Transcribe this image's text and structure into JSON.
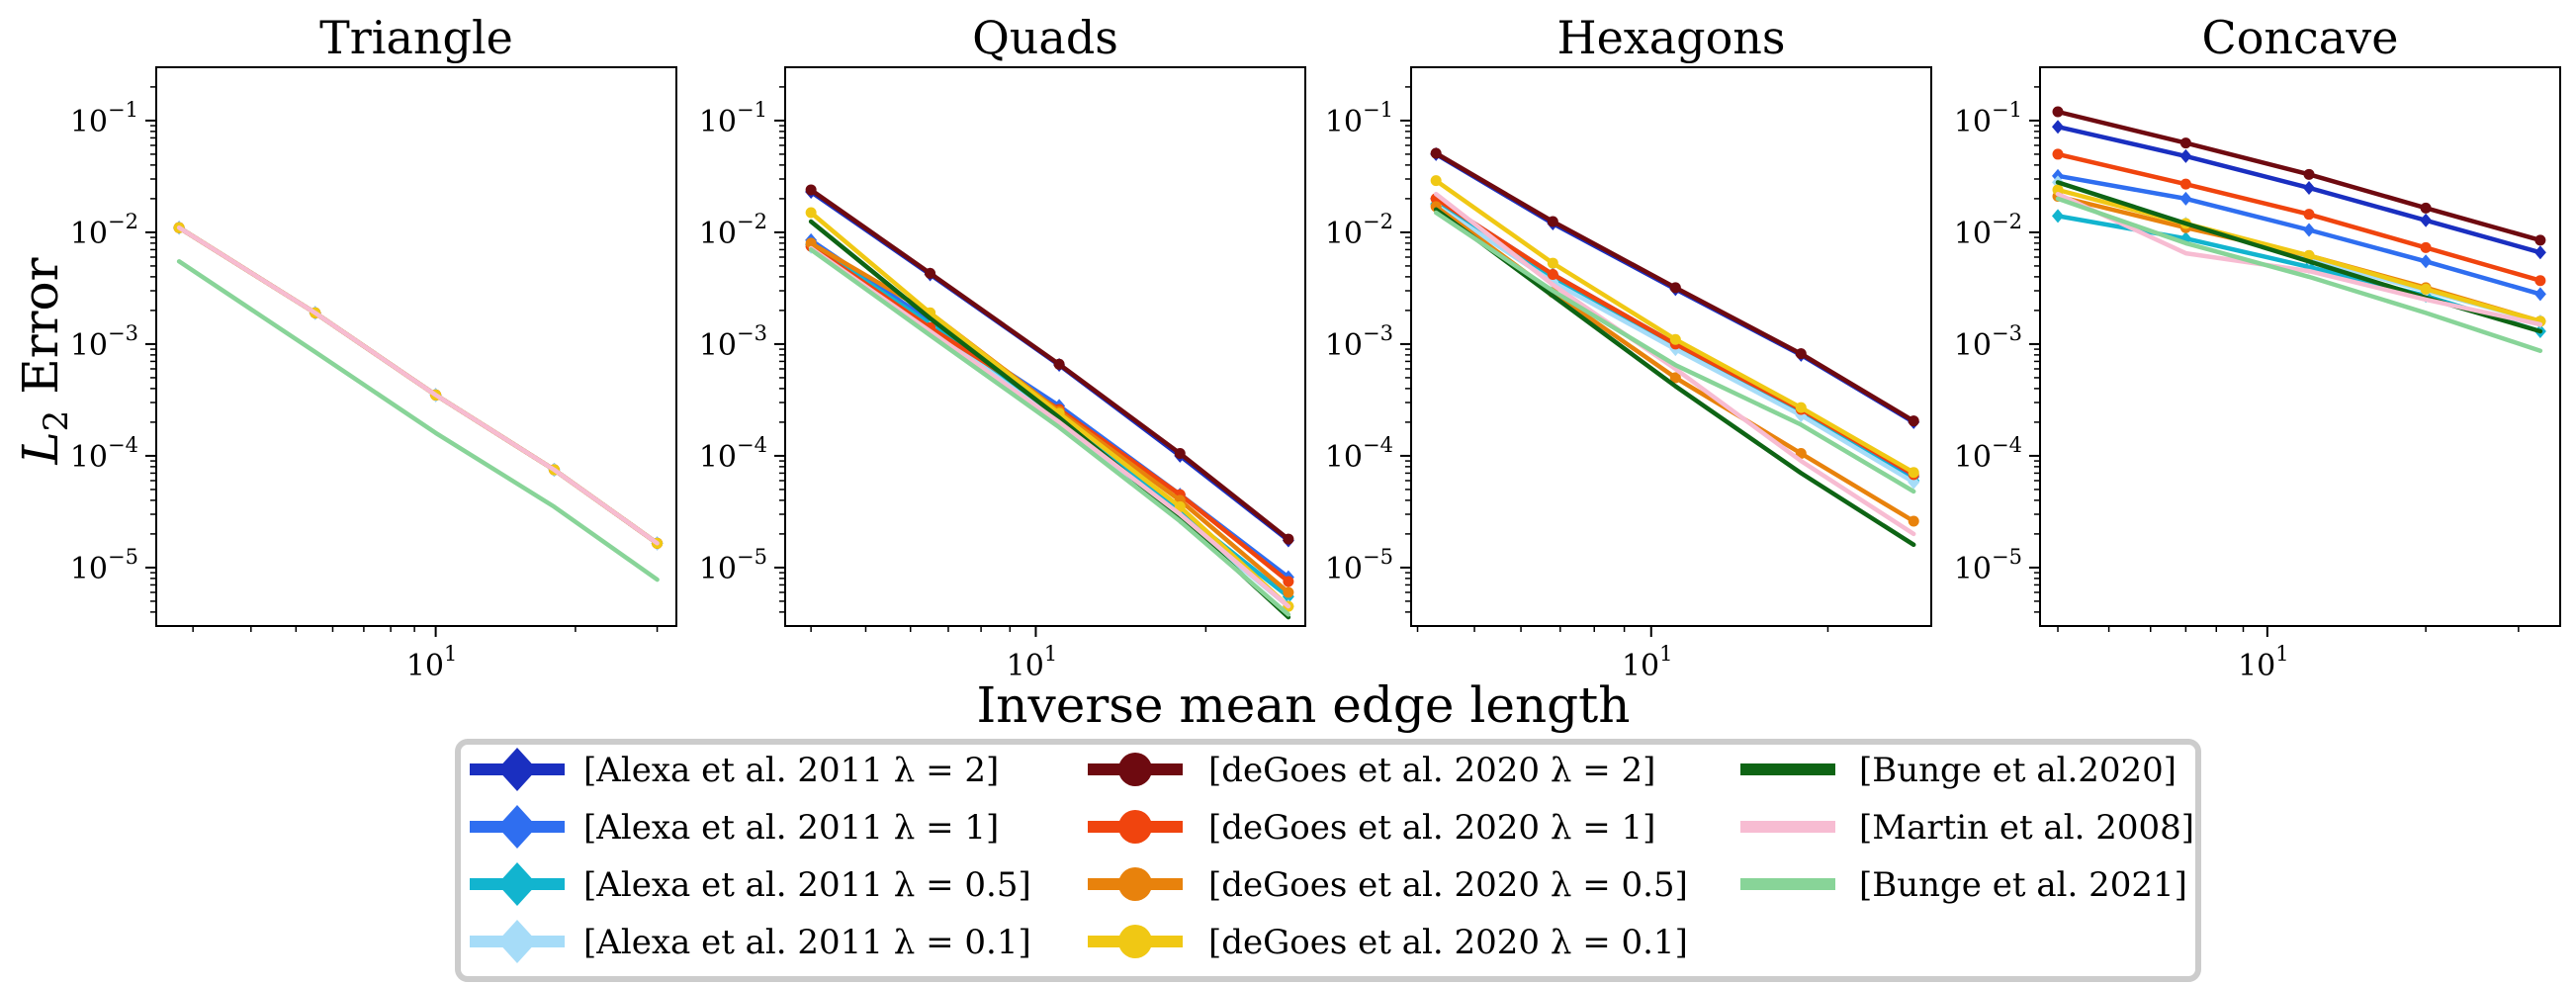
{
  "figure": {
    "xlabel": "Inverse mean edge length",
    "ylabel": "L",
    "ylabel_sub": "2",
    "ylabel_rest": " Error"
  },
  "legend": {
    "entries": [
      {
        "label": "[Alexa et al. 2011 λ = 2]",
        "color": "#1a2fc0",
        "marker": "diamond"
      },
      {
        "label": "[Alexa et al. 2011 λ = 1]",
        "color": "#2f6ef0",
        "marker": "diamond"
      },
      {
        "label": "[Alexa et al. 2011 λ = 0.5]",
        "color": "#12b4cf",
        "marker": "diamond"
      },
      {
        "label": "[Alexa et al. 2011 λ = 0.1]",
        "color": "#a6dcf8",
        "marker": "diamond"
      },
      {
        "label": "[deGoes et al. 2020 λ = 2]",
        "color": "#6e0a10",
        "marker": "circle"
      },
      {
        "label": "[deGoes et al. 2020 λ = 1]",
        "color": "#f0440e",
        "marker": "circle"
      },
      {
        "label": "[deGoes et al. 2020 λ = 0.5]",
        "color": "#e8820c",
        "marker": "circle"
      },
      {
        "label": "[deGoes et al. 2020 λ = 0.1]",
        "color": "#f0c814",
        "marker": "circle"
      },
      {
        "label": "[Bunge et al.2020]",
        "color": "#0e6414",
        "marker": "none"
      },
      {
        "label": "[Martin et al. 2008]",
        "color": "#f7bcd2",
        "marker": "none"
      },
      {
        "label": "[Bunge et al. 2021]",
        "color": "#88d498",
        "marker": "none"
      }
    ]
  },
  "chart_data": [
    {
      "type": "line",
      "title": "Triangle",
      "xscale": "log",
      "yscale": "log",
      "xlim": [
        2.5,
        33
      ],
      "ylim": [
        3e-06,
        0.3
      ],
      "x_ticks": [
        {
          "value": 10,
          "base": "10",
          "exp": "1"
        }
      ],
      "y_ticks": [
        {
          "value": 0.1,
          "base": "10",
          "exp": "−1"
        },
        {
          "value": 0.01,
          "base": "10",
          "exp": "−2"
        },
        {
          "value": 0.001,
          "base": "10",
          "exp": "−3"
        },
        {
          "value": 0.0001,
          "base": "10",
          "exp": "−4"
        },
        {
          "value": 1e-05,
          "base": "10",
          "exp": "−5"
        }
      ],
      "x": [
        2.8,
        5.5,
        10,
        18,
        30
      ],
      "series": [
        {
          "name": "[Alexa et al. 2011 λ = 2]",
          "values": [
            0.011,
            0.0019,
            0.00035,
            7.5e-05,
            1.65e-05
          ]
        },
        {
          "name": "[Alexa et al. 2011 λ = 1]",
          "values": [
            0.011,
            0.0019,
            0.00035,
            7.5e-05,
            1.65e-05
          ]
        },
        {
          "name": "[Alexa et al. 2011 λ = 0.5]",
          "values": [
            0.011,
            0.0019,
            0.00035,
            7.5e-05,
            1.65e-05
          ]
        },
        {
          "name": "[Alexa et al. 2011 λ = 0.1]",
          "values": [
            0.011,
            0.0019,
            0.00035,
            7.5e-05,
            1.65e-05
          ]
        },
        {
          "name": "[deGoes et al. 2020 λ = 2]",
          "values": [
            0.011,
            0.0019,
            0.00035,
            7.5e-05,
            1.65e-05
          ]
        },
        {
          "name": "[deGoes et al. 2020 λ = 1]",
          "values": [
            0.011,
            0.0019,
            0.00035,
            7.5e-05,
            1.65e-05
          ]
        },
        {
          "name": "[deGoes et al. 2020 λ = 0.5]",
          "values": [
            0.011,
            0.0019,
            0.00035,
            7.5e-05,
            1.65e-05
          ]
        },
        {
          "name": "[deGoes et al. 2020 λ = 0.1]",
          "values": [
            0.011,
            0.0019,
            0.00035,
            7.5e-05,
            1.65e-05
          ]
        },
        {
          "name": "[Martin et al. 2008]",
          "values": [
            0.011,
            0.0019,
            0.00035,
            7.5e-05,
            1.65e-05
          ]
        },
        {
          "name": "[Bunge et al. 2021]",
          "values": [
            0.0055,
            0.00085,
            0.00016,
            3.5e-05,
            7.8e-06
          ]
        }
      ]
    },
    {
      "type": "line",
      "title": "Quads",
      "xscale": "log",
      "yscale": "log",
      "xlim": [
        3.6,
        30
      ],
      "ylim": [
        3e-06,
        0.3
      ],
      "x_ticks": [
        {
          "value": 10,
          "base": "10",
          "exp": "1"
        }
      ],
      "y_ticks": [
        {
          "value": 0.1,
          "base": "10",
          "exp": "−1"
        },
        {
          "value": 0.01,
          "base": "10",
          "exp": "−2"
        },
        {
          "value": 0.001,
          "base": "10",
          "exp": "−3"
        },
        {
          "value": 0.0001,
          "base": "10",
          "exp": "−4"
        },
        {
          "value": 1e-05,
          "base": "10",
          "exp": "−5"
        }
      ],
      "x": [
        4,
        6.5,
        11,
        18,
        28
      ],
      "series": [
        {
          "name": "[Alexa et al. 2011 λ = 2]",
          "values": [
            0.023,
            0.0042,
            0.00065,
            0.0001,
            1.75e-05
          ]
        },
        {
          "name": "[Alexa et al. 2011 λ = 1]",
          "values": [
            0.0085,
            0.0016,
            0.00028,
            4.5e-05,
            8.2e-06
          ]
        },
        {
          "name": "[Alexa et al. 2011 λ = 0.5]",
          "values": [
            0.0078,
            0.0015,
            0.00022,
            3.2e-05,
            5.5e-06
          ]
        },
        {
          "name": "[Alexa et al. 2011 λ = 0.1]",
          "values": [
            0.0074,
            0.0014,
            0.0002,
            2.8e-05,
            4.5e-06
          ]
        },
        {
          "name": "[deGoes et al. 2020 λ = 2]",
          "values": [
            0.024,
            0.0043,
            0.00066,
            0.000105,
            1.8e-05
          ]
        },
        {
          "name": "[deGoes et al. 2020 λ = 1]",
          "values": [
            0.0075,
            0.0014,
            0.00026,
            4.5e-05,
            7.5e-06
          ]
        },
        {
          "name": "[deGoes et al. 2020 λ = 0.5]",
          "values": [
            0.008,
            0.0019,
            0.00025,
            4e-05,
            6e-06
          ]
        },
        {
          "name": "[deGoes et al. 2020 λ = 0.1]",
          "values": [
            0.015,
            0.0019,
            0.00024,
            3.5e-05,
            4.5e-06
          ]
        },
        {
          "name": "[Bunge et al.2020]",
          "values": [
            0.0125,
            0.0017,
            0.00022,
            2.8e-05,
            3.6e-06
          ]
        },
        {
          "name": "[Martin et al. 2008]",
          "values": [
            0.0072,
            0.0013,
            0.0002,
            3e-05,
            4.5e-06
          ]
        },
        {
          "name": "[Bunge et al. 2021]",
          "values": [
            0.007,
            0.0012,
            0.00018,
            2.6e-05,
            3.8e-06
          ]
        }
      ]
    },
    {
      "type": "line",
      "title": "Hexagons",
      "xscale": "log",
      "yscale": "log",
      "xlim": [
        3.9,
        30
      ],
      "ylim": [
        3e-06,
        0.3
      ],
      "x_ticks": [
        {
          "value": 10,
          "base": "10",
          "exp": "1"
        }
      ],
      "y_ticks": [
        {
          "value": 0.1,
          "base": "10",
          "exp": "−1"
        },
        {
          "value": 0.01,
          "base": "10",
          "exp": "−2"
        },
        {
          "value": 0.001,
          "base": "10",
          "exp": "−3"
        },
        {
          "value": 0.0001,
          "base": "10",
          "exp": "−4"
        },
        {
          "value": 1e-05,
          "base": "10",
          "exp": "−5"
        }
      ],
      "x": [
        4.3,
        6.8,
        11,
        18,
        28
      ],
      "series": [
        {
          "name": "[Alexa et al. 2011 λ = 2]",
          "values": [
            0.05,
            0.012,
            0.0031,
            0.0008,
            0.0002
          ]
        },
        {
          "name": "[Alexa et al. 2011 λ = 1]",
          "values": [
            0.02,
            0.0042,
            0.001,
            0.00025,
            6.5e-05
          ]
        },
        {
          "name": "[Alexa et al. 2011 λ = 0.5]",
          "values": [
            0.018,
            0.0038,
            0.00095,
            0.00024,
            6e-05
          ]
        },
        {
          "name": "[Alexa et al. 2011 λ = 0.1]",
          "values": [
            0.0175,
            0.0036,
            0.0009,
            0.00023,
            5.8e-05
          ]
        },
        {
          "name": "[deGoes et al. 2020 λ = 2]",
          "values": [
            0.051,
            0.0125,
            0.0032,
            0.00082,
            0.000205
          ]
        },
        {
          "name": "[deGoes et al. 2020 λ = 1]",
          "values": [
            0.02,
            0.0042,
            0.001,
            0.00026,
            6.8e-05
          ]
        },
        {
          "name": "[deGoes et al. 2020 λ = 0.5]",
          "values": [
            0.017,
            0.0029,
            0.0005,
            0.000105,
            2.6e-05
          ]
        },
        {
          "name": "[deGoes et al. 2020 λ = 0.1]",
          "values": [
            0.029,
            0.0053,
            0.0011,
            0.00027,
            7.1e-05
          ]
        },
        {
          "name": "[Bunge et al.2020]",
          "values": [
            0.016,
            0.0027,
            0.00042,
            7e-05,
            1.6e-05
          ]
        },
        {
          "name": "[Martin et al. 2008]",
          "values": [
            0.022,
            0.0034,
            0.0006,
            9e-05,
            2e-05
          ]
        },
        {
          "name": "[Bunge et al. 2021]",
          "values": [
            0.015,
            0.003,
            0.00065,
            0.00019,
            4.8e-05
          ]
        }
      ]
    },
    {
      "type": "line",
      "title": "Concave",
      "xscale": "log",
      "yscale": "log",
      "xlim": [
        3.7,
        36
      ],
      "ylim": [
        3e-06,
        0.3
      ],
      "x_ticks": [
        {
          "value": 10,
          "base": "10",
          "exp": "1"
        }
      ],
      "y_ticks": [
        {
          "value": 0.1,
          "base": "10",
          "exp": "−1"
        },
        {
          "value": 0.01,
          "base": "10",
          "exp": "−2"
        },
        {
          "value": 0.001,
          "base": "10",
          "exp": "−3"
        },
        {
          "value": 0.0001,
          "base": "10",
          "exp": "−4"
        },
        {
          "value": 1e-05,
          "base": "10",
          "exp": "−5"
        }
      ],
      "x": [
        4,
        7,
        12,
        20,
        33
      ],
      "series": [
        {
          "name": "[Alexa et al. 2011 λ = 2]",
          "values": [
            0.088,
            0.048,
            0.025,
            0.0128,
            0.0066
          ]
        },
        {
          "name": "[Alexa et al. 2011 λ = 1]",
          "values": [
            0.032,
            0.02,
            0.0105,
            0.0055,
            0.0028
          ]
        },
        {
          "name": "[Alexa et al. 2011 λ = 0.5]",
          "values": [
            0.014,
            0.0088,
            0.0049,
            0.0027,
            0.0013
          ]
        },
        {
          "name": "[Alexa et al. 2011 λ = 0.1]",
          "values": [
            0.028,
            0.012,
            0.0058,
            0.003,
            0.0016
          ]
        },
        {
          "name": "[deGoes et al. 2020 λ = 2]",
          "values": [
            0.12,
            0.063,
            0.033,
            0.0165,
            0.0085
          ]
        },
        {
          "name": "[deGoes et al. 2020 λ = 1]",
          "values": [
            0.05,
            0.027,
            0.0145,
            0.0073,
            0.0037
          ]
        },
        {
          "name": "[deGoes et al. 2020 λ = 0.5]",
          "values": [
            0.021,
            0.011,
            0.0062,
            0.0032,
            0.0016
          ]
        },
        {
          "name": "[deGoes et al. 2020 λ = 0.1]",
          "values": [
            0.024,
            0.012,
            0.0062,
            0.0031,
            0.0016
          ]
        },
        {
          "name": "[Bunge et al.2020]",
          "values": [
            0.028,
            0.012,
            0.0055,
            0.0026,
            0.0013
          ]
        },
        {
          "name": "[Martin et al. 2008]",
          "values": [
            0.022,
            0.0065,
            0.0045,
            0.0025,
            0.0015
          ]
        },
        {
          "name": "[Bunge et al. 2021]",
          "values": [
            0.02,
            0.008,
            0.004,
            0.0019,
            0.00087
          ]
        }
      ]
    }
  ]
}
